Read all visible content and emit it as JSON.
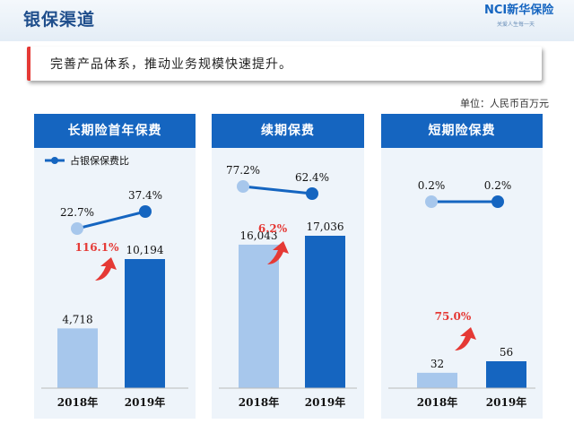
{
  "header": {
    "title": "银保渠道",
    "logo_text": "NCI新华保险",
    "logo_slogan": "关爱人生每一天"
  },
  "banner": {
    "text": "完善产品体系，推动业务规模快速提升。"
  },
  "unit_label": "单位：人民币百万元",
  "colors": {
    "bar_2018": "#a7c7ec",
    "bar_2019": "#1565c0",
    "line": "#1565c0",
    "point_2018": "#a7c7ec",
    "point_2019": "#1565c0",
    "growth": "#e53935",
    "header": "#1565c0"
  },
  "chart_data": [
    {
      "type": "bar",
      "title": "长期险首年保费",
      "categories": [
        "2018年",
        "2019年"
      ],
      "series": [
        {
          "values": [
            4718,
            10194
          ],
          "labels": [
            "4,718",
            "10,194"
          ]
        }
      ],
      "line_series": {
        "name": "占银保保费比",
        "values": [
          22.7,
          37.4
        ],
        "labels": [
          "22.7%",
          "37.4%"
        ]
      },
      "growth": "116.1%",
      "legend": "top-left"
    },
    {
      "type": "bar",
      "title": "续期保费",
      "categories": [
        "2018年",
        "2019年"
      ],
      "series": [
        {
          "values": [
            16043,
            17036
          ],
          "labels": [
            "16,043",
            "17,036"
          ]
        }
      ],
      "line_series": {
        "values": [
          77.2,
          62.4
        ],
        "labels": [
          "77.2%",
          "62.4%"
        ]
      },
      "growth": "6.2%"
    },
    {
      "type": "bar",
      "title": "短期险保费",
      "categories": [
        "2018年",
        "2019年"
      ],
      "series": [
        {
          "values": [
            32,
            56
          ],
          "labels": [
            "32",
            "56"
          ]
        }
      ],
      "line_series": {
        "values": [
          0.2,
          0.2
        ],
        "labels": [
          "0.2%",
          "0.2%"
        ]
      },
      "growth": "75.0%"
    }
  ]
}
